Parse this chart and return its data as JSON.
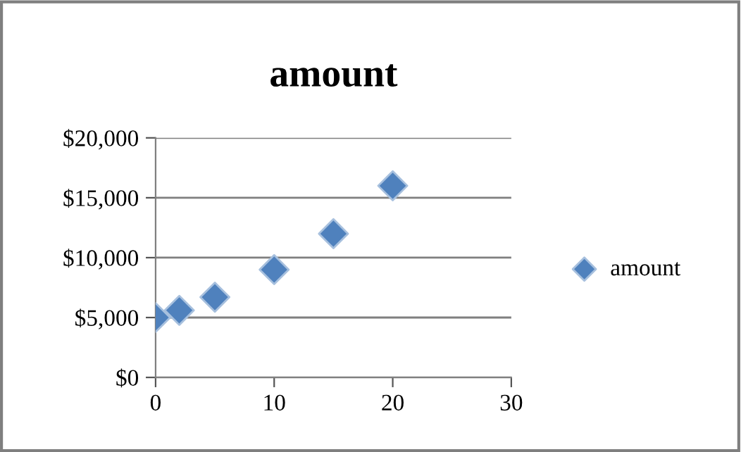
{
  "chart_data": {
    "type": "scatter",
    "title": "amount",
    "x": [
      0,
      2,
      5,
      10,
      15,
      20
    ],
    "series": [
      {
        "name": "amount",
        "color": "#4f81bd",
        "values": [
          5000,
          5600,
          6700,
          9000,
          12000,
          16000
        ]
      }
    ],
    "xlim": [
      0,
      30
    ],
    "xticks": [
      0,
      10,
      20,
      30
    ],
    "ylim": [
      0,
      20000
    ],
    "yticks": [
      {
        "value": 0,
        "label": "$0"
      },
      {
        "value": 5000,
        "label": "$5,000"
      },
      {
        "value": 10000,
        "label": "$10,000"
      },
      {
        "value": 15000,
        "label": "$15,000"
      },
      {
        "value": 20000,
        "label": "$20,000"
      }
    ],
    "grid": "y",
    "legend": "right",
    "marker": "diamond"
  }
}
